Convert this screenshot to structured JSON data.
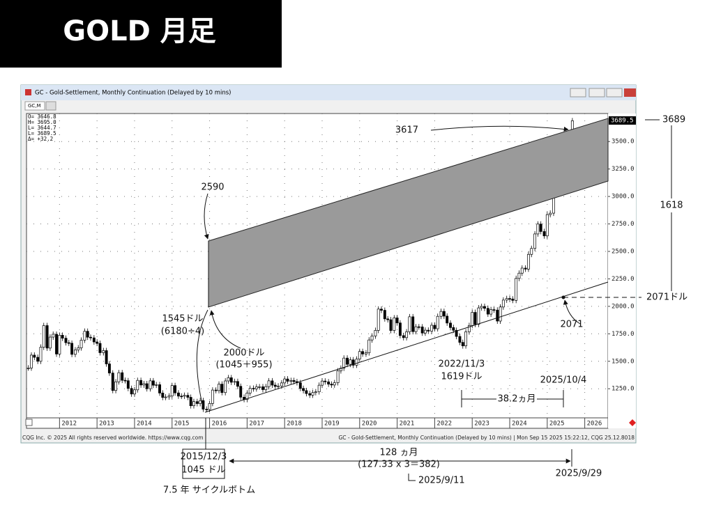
{
  "header": {
    "title": "GOLD 月足"
  },
  "window": {
    "title": "GC - Gold-Settlement, Monthly Continuation (Delayed by 10 mins)",
    "tab": "GC,M",
    "ohlc": [
      "O=  3646.8",
      "H=  3695.0",
      "L=  3644.7",
      "L=  3689.5",
      "Δ=   +32.2"
    ],
    "last_price": "3689.5",
    "footer_left": "CQG Inc. © 2025 All rights reserved worldwide. https://www.cqg.com",
    "footer_right": "GC - Gold-Settlement, Monthly Continuation (Delayed by 10 mins) | Mon Sep 15 2025 15:22:12, CQG 25.12.8018"
  },
  "chart_data": {
    "type": "candlestick",
    "grid": true,
    "color_up": "#ffffff",
    "color_down": "#000000",
    "xlim": [
      2011.12,
      2026.62
    ],
    "xticks": [
      2012,
      2013,
      2014,
      2015,
      2016,
      2017,
      2018,
      2019,
      2020,
      2021,
      2022,
      2023,
      2024,
      2025,
      2026
    ],
    "ylim": [
      985,
      3755
    ],
    "yticks": [
      {
        "value": 1250,
        "label": "1250.0"
      },
      {
        "value": 1500,
        "label": "1500.0"
      },
      {
        "value": 1750,
        "label": "1750.0"
      },
      {
        "value": 2000,
        "label": "2000.0"
      },
      {
        "value": 2250,
        "label": "2250.0"
      },
      {
        "value": 2500,
        "label": "2500.0"
      },
      {
        "value": 2750,
        "label": "2750.0"
      },
      {
        "value": 3000,
        "label": "3000.0"
      },
      {
        "value": 3250,
        "label": "3250.0"
      },
      {
        "value": 3500,
        "label": "3500.0"
      }
    ],
    "x": [
      2011.17,
      2011.25,
      2011.33,
      2011.42,
      2011.5,
      2011.58,
      2011.67,
      2011.75,
      2011.83,
      2011.92,
      2012.0,
      2012.08,
      2012.17,
      2012.25,
      2012.33,
      2012.42,
      2012.5,
      2012.58,
      2012.67,
      2012.75,
      2012.83,
      2012.92,
      2013.0,
      2013.08,
      2013.17,
      2013.25,
      2013.33,
      2013.42,
      2013.5,
      2013.58,
      2013.67,
      2013.75,
      2013.83,
      2013.92,
      2014.0,
      2014.08,
      2014.17,
      2014.25,
      2014.33,
      2014.42,
      2014.5,
      2014.58,
      2014.67,
      2014.75,
      2014.83,
      2014.92,
      2015.0,
      2015.08,
      2015.17,
      2015.25,
      2015.33,
      2015.42,
      2015.5,
      2015.58,
      2015.67,
      2015.75,
      2015.83,
      2015.92,
      2016.0,
      2016.08,
      2016.17,
      2016.25,
      2016.33,
      2016.42,
      2016.5,
      2016.58,
      2016.67,
      2016.75,
      2016.83,
      2016.92,
      2017.0,
      2017.08,
      2017.17,
      2017.25,
      2017.33,
      2017.42,
      2017.5,
      2017.58,
      2017.67,
      2017.75,
      2017.83,
      2017.92,
      2018.0,
      2018.08,
      2018.17,
      2018.25,
      2018.33,
      2018.42,
      2018.5,
      2018.58,
      2018.67,
      2018.75,
      2018.83,
      2018.92,
      2019.0,
      2019.08,
      2019.17,
      2019.25,
      2019.33,
      2019.42,
      2019.5,
      2019.58,
      2019.67,
      2019.75,
      2019.83,
      2019.92,
      2020.0,
      2020.08,
      2020.17,
      2020.25,
      2020.33,
      2020.42,
      2020.5,
      2020.58,
      2020.67,
      2020.75,
      2020.83,
      2020.92,
      2021.0,
      2021.08,
      2021.17,
      2021.25,
      2021.33,
      2021.42,
      2021.5,
      2021.58,
      2021.67,
      2021.75,
      2021.83,
      2021.92,
      2022.0,
      2022.08,
      2022.17,
      2022.25,
      2022.33,
      2022.42,
      2022.5,
      2022.58,
      2022.67,
      2022.75,
      2022.83,
      2022.92,
      2023.0,
      2023.08,
      2023.17,
      2023.25,
      2023.33,
      2023.42,
      2023.5,
      2023.58,
      2023.67,
      2023.75,
      2023.83,
      2023.92,
      2024.0,
      2024.08,
      2024.17,
      2024.25,
      2024.33,
      2024.42,
      2024.5,
      2024.58,
      2024.67,
      2024.75,
      2024.83,
      2024.92,
      2025.0,
      2025.08,
      2025.17,
      2025.25,
      2025.33,
      2025.42,
      2025.5,
      2025.58,
      2025.67
    ],
    "values": [
      1439,
      1556,
      1536,
      1500,
      1628,
      1825,
      1620,
      1720,
      1746,
      1566,
      1737,
      1710,
      1669,
      1664,
      1563,
      1604,
      1622,
      1692,
      1773,
      1719,
      1713,
      1676,
      1663,
      1578,
      1597,
      1476,
      1393,
      1234,
      1313,
      1396,
      1327,
      1323,
      1253,
      1202,
      1240,
      1326,
      1284,
      1296,
      1250,
      1322,
      1282,
      1287,
      1211,
      1171,
      1175,
      1184,
      1279,
      1212,
      1183,
      1182,
      1190,
      1172,
      1095,
      1133,
      1115,
      1142,
      1064,
      1061,
      1116,
      1238,
      1233,
      1292,
      1215,
      1321,
      1350,
      1309,
      1316,
      1272,
      1173,
      1152,
      1211,
      1254,
      1249,
      1267,
      1268,
      1242,
      1269,
      1322,
      1283,
      1271,
      1275,
      1303,
      1339,
      1318,
      1325,
      1315,
      1305,
      1253,
      1233,
      1206,
      1192,
      1215,
      1222,
      1282,
      1320,
      1313,
      1292,
      1284,
      1305,
      1413,
      1437,
      1529,
      1472,
      1513,
      1464,
      1520,
      1589,
      1566,
      1577,
      1694,
      1730,
      1781,
      1975,
      1964,
      1886,
      1878,
      1780,
      1895,
      1849,
      1734,
      1715,
      1768,
      1905,
      1770,
      1814,
      1813,
      1757,
      1783,
      1774,
      1828,
      1796,
      1909,
      1954,
      1911,
      1848,
      1807,
      1782,
      1726,
      1672,
      1640,
      1768,
      1826,
      1945,
      1836,
      1986,
      1999,
      1982,
      1929,
      1970,
      1966,
      1866,
      1994,
      2057,
      2071,
      2067,
      2054,
      2254,
      2302,
      2348,
      2339,
      2473,
      2527,
      2659,
      2749,
      2681,
      2641,
      2835,
      2848,
      3150,
      3305,
      3313,
      3307,
      3348,
      3516,
      3689
    ]
  },
  "annotations": {
    "a3617": "3617",
    "a2590": "2590",
    "a1545": "1545ドル",
    "a1545_calc": "(6180÷4)",
    "a2000": "2000ドル",
    "a2000_calc": "(1045＋955)",
    "low_date": "2022/11/3",
    "low_price": "1619ドル",
    "future_date": "2025/10/4",
    "months_382": "38.2ヵ月",
    "a2071": "2071",
    "r3689": "3689",
    "r1618": "1618",
    "r2071": "2071ドル",
    "bottom_date": "2015/12/3",
    "bottom_price": "1045 ドル",
    "cycle": "7.5 年 サイクルボトム",
    "months_128": "128 ヵ月",
    "months_calc": "(127.33 x 3＝382)",
    "date_911": "2025/9/11",
    "date_929": "2025/9/29"
  }
}
